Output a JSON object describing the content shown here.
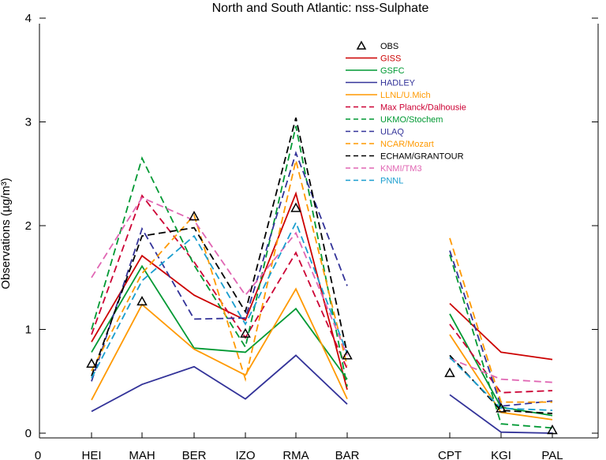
{
  "chart_data": {
    "type": "line",
    "title": "North and South Atlantic: nss-Sulphate",
    "xlabel": "",
    "ylabel": "Observations (µg/m³)",
    "ylim": [
      0,
      4
    ],
    "yticks": [
      0,
      1,
      2,
      3,
      4
    ],
    "x_origin_label": "0",
    "categories": [
      "HEI",
      "MAH",
      "BER",
      "IZO",
      "RMA",
      "BAR",
      "CPT",
      "KGI",
      "PAL"
    ],
    "segments": [
      [
        0,
        5
      ],
      [
        6,
        8
      ]
    ],
    "grid": false,
    "legend_position": "top-center",
    "observations": {
      "name": "OBS",
      "marker": "triangle",
      "values": [
        0.67,
        1.27,
        2.09,
        0.96,
        2.17,
        0.75,
        0.58,
        0.24,
        0.03
      ]
    },
    "series": [
      {
        "name": "GISS",
        "color": "#cc0000",
        "dash": false,
        "values": [
          0.88,
          1.71,
          1.33,
          1.09,
          2.31,
          0.42,
          1.25,
          0.78,
          0.71
        ]
      },
      {
        "name": "GSFC",
        "color": "#009933",
        "dash": false,
        "values": [
          0.78,
          1.61,
          0.82,
          0.78,
          1.2,
          0.52,
          1.15,
          0.25,
          0.17
        ]
      },
      {
        "name": "HADLEY",
        "color": "#333399",
        "dash": false,
        "values": [
          0.21,
          0.47,
          0.64,
          0.33,
          0.75,
          0.28,
          0.37,
          0.01,
          0.0
        ]
      },
      {
        "name": "LLNL/U.Mich",
        "color": "#ff9900",
        "dash": false,
        "values": [
          0.32,
          1.24,
          0.81,
          0.56,
          1.39,
          0.33,
          0.95,
          0.2,
          0.13
        ]
      },
      {
        "name": "Max Planck/Dalhousie",
        "color": "#cc0033",
        "dash": true,
        "values": [
          0.95,
          2.29,
          1.65,
          0.92,
          1.74,
          0.62,
          1.05,
          0.39,
          0.41
        ]
      },
      {
        "name": "UKMO/Stochem",
        "color": "#009933",
        "dash": true,
        "values": [
          1.0,
          2.65,
          1.62,
          0.83,
          2.96,
          0.45,
          1.72,
          0.09,
          0.05
        ]
      },
      {
        "name": "ULAQ",
        "color": "#333399",
        "dash": true,
        "values": [
          0.5,
          1.97,
          1.1,
          1.11,
          2.7,
          1.42,
          1.76,
          0.26,
          0.31
        ]
      },
      {
        "name": "NCAR/Mozart",
        "color": "#ff9900",
        "dash": true,
        "values": [
          0.6,
          1.54,
          2.1,
          0.52,
          2.63,
          0.65,
          1.88,
          0.3,
          0.3
        ]
      },
      {
        "name": "ECHAM/GRANTOUR",
        "color": "#000000",
        "dash": true,
        "values": [
          0.55,
          1.9,
          1.98,
          1.17,
          3.04,
          0.77,
          0.75,
          0.22,
          0.19
        ]
      },
      {
        "name": "KNMI/TM3",
        "color": "#e066b3",
        "dash": true,
        "values": [
          1.5,
          2.27,
          2.05,
          1.33,
          1.93,
          0.75,
          0.72,
          0.52,
          0.49
        ]
      },
      {
        "name": "PNNL",
        "color": "#1a9ecf",
        "dash": true,
        "values": [
          0.53,
          1.47,
          1.9,
          1.05,
          2.03,
          0.77,
          0.73,
          0.24,
          0.22
        ]
      }
    ]
  }
}
